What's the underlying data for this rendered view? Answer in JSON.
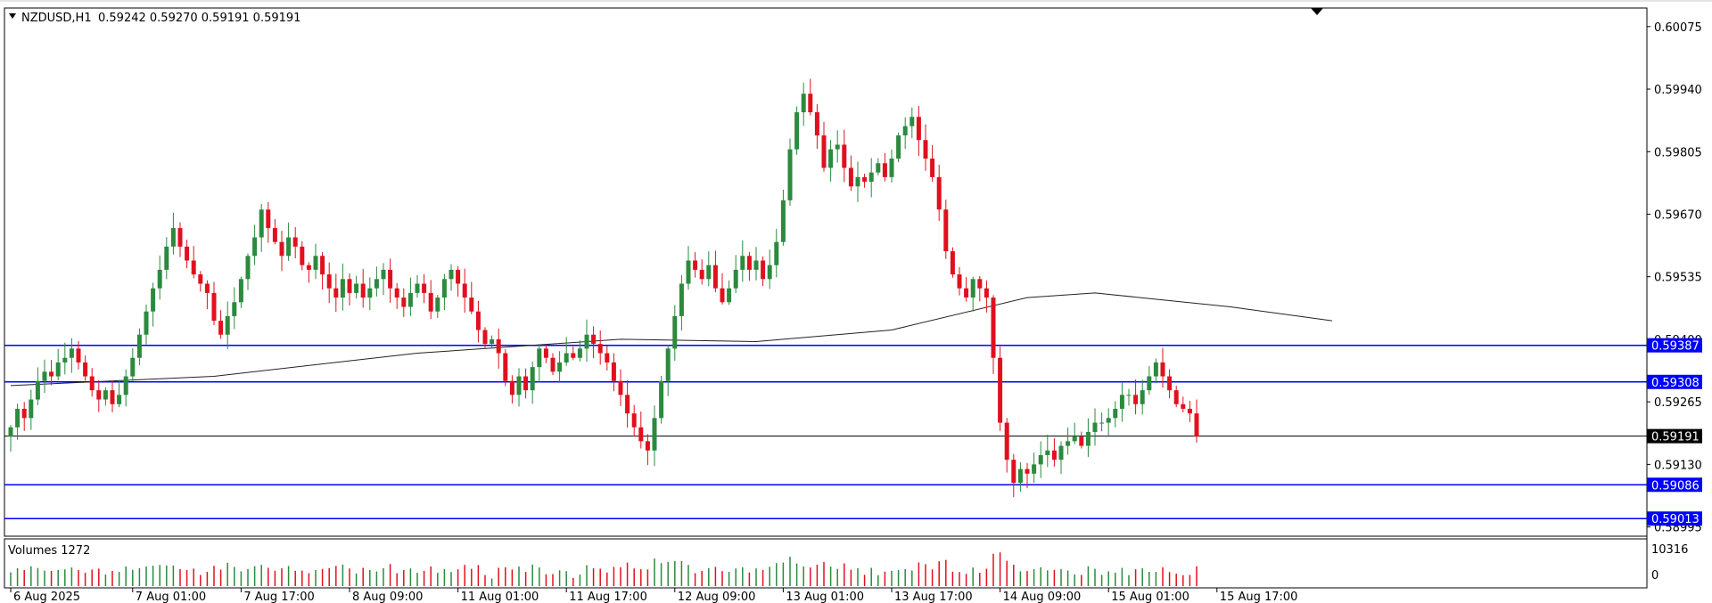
{
  "chart_data": {
    "type": "candlestick",
    "symbol_header": "NZDUSD,H1",
    "ohlc_header": "0.59242 0.59270 0.59191 0.59191",
    "y_range": [
      0.58975,
      0.60115
    ],
    "price_ticks": [
      "0.60075",
      "0.59940",
      "0.59805",
      "0.59670",
      "0.59535",
      "0.59400",
      "0.59265",
      "0.59130",
      "0.58995"
    ],
    "time_labels": [
      {
        "label": "6 Aug 2025",
        "bar": 0
      },
      {
        "label": "7 Aug 01:00",
        "bar": 18
      },
      {
        "label": "7 Aug 17:00",
        "bar": 34
      },
      {
        "label": "8 Aug 09:00",
        "bar": 50
      },
      {
        "label": "11 Aug 01:00",
        "bar": 66
      },
      {
        "label": "11 Aug 17:00",
        "bar": 82
      },
      {
        "label": "12 Aug 09:00",
        "bar": 98
      },
      {
        "label": "13 Aug 01:00",
        "bar": 114
      },
      {
        "label": "13 Aug 17:00",
        "bar": 130
      },
      {
        "label": "14 Aug 09:00",
        "bar": 146
      },
      {
        "label": "15 Aug 01:00",
        "bar": 162
      },
      {
        "label": "15 Aug 17:00",
        "bar": 178
      }
    ],
    "closes": [
      0.5921,
      0.5925,
      0.5923,
      0.5927,
      0.5931,
      0.5933,
      0.5932,
      0.5935,
      0.5936,
      0.5938,
      0.5935,
      0.5932,
      0.5929,
      0.5927,
      0.5929,
      0.5926,
      0.5928,
      0.5932,
      0.5936,
      0.5941,
      0.5946,
      0.5951,
      0.5955,
      0.596,
      0.5964,
      0.596,
      0.5957,
      0.5954,
      0.5952,
      0.595,
      0.5944,
      0.5941,
      0.5945,
      0.5948,
      0.5953,
      0.5958,
      0.5962,
      0.5968,
      0.5964,
      0.5961,
      0.5958,
      0.5962,
      0.596,
      0.5956,
      0.5955,
      0.5958,
      0.5954,
      0.5951,
      0.5949,
      0.5953,
      0.595,
      0.5952,
      0.5949,
      0.5951,
      0.5953,
      0.5955,
      0.5951,
      0.5949,
      0.5947,
      0.595,
      0.5952,
      0.595,
      0.5946,
      0.5949,
      0.5953,
      0.5955,
      0.5952,
      0.5949,
      0.5946,
      0.5942,
      0.5939,
      0.594,
      0.5937,
      0.5931,
      0.5928,
      0.5932,
      0.5929,
      0.5934,
      0.5938,
      0.5936,
      0.5933,
      0.5935,
      0.5937,
      0.5936,
      0.5938,
      0.5941,
      0.5939,
      0.5937,
      0.5935,
      0.5931,
      0.5928,
      0.5924,
      0.5921,
      0.5918,
      0.5916,
      0.5923,
      0.5931,
      0.5938,
      0.5945,
      0.5952,
      0.5957,
      0.5955,
      0.5953,
      0.5956,
      0.5951,
      0.5948,
      0.5951,
      0.5955,
      0.5958,
      0.5955,
      0.5957,
      0.5953,
      0.5956,
      0.5961,
      0.597,
      0.5981,
      0.5989,
      0.5993,
      0.5989,
      0.5984,
      0.5977,
      0.5981,
      0.5982,
      0.5977,
      0.5973,
      0.5975,
      0.5974,
      0.5976,
      0.5978,
      0.5975,
      0.5979,
      0.5984,
      0.5986,
      0.5988,
      0.5983,
      0.5979,
      0.5975,
      0.5968,
      0.5959,
      0.5954,
      0.5951,
      0.5949,
      0.5953,
      0.5951,
      0.5949,
      0.5936,
      0.5922,
      0.5914,
      0.5909,
      0.5912,
      0.5911,
      0.5913,
      0.5915,
      0.5916,
      0.5914,
      0.5917,
      0.5918,
      0.5919,
      0.5917,
      0.592,
      0.5922,
      0.5922,
      0.5923,
      0.5925,
      0.5928,
      0.5928,
      0.5926,
      0.5929,
      0.5932,
      0.5935,
      0.5932,
      0.5929,
      0.5926,
      0.5925,
      0.5924,
      0.5919
    ],
    "ma_points": [
      [
        0,
        0.593
      ],
      [
        30,
        0.5932
      ],
      [
        60,
        0.5937
      ],
      [
        90,
        0.594
      ],
      [
        110,
        0.59395
      ],
      [
        130,
        0.5942
      ],
      [
        150,
        0.5949
      ],
      [
        160,
        0.595
      ],
      [
        180,
        0.5947
      ],
      [
        195,
        0.5944
      ]
    ],
    "horizontal_lines": [
      {
        "price": 0.59387,
        "label": "0.59387",
        "color": "#0000ff"
      },
      {
        "price": 0.59308,
        "label": "0.59308",
        "color": "#0000ff"
      },
      {
        "price": 0.59086,
        "label": "0.59086",
        "color": "#0000ff"
      },
      {
        "price": 0.59013,
        "label": "0.59013",
        "color": "#0000ff"
      }
    ],
    "current_price": {
      "price": 0.59191,
      "label": "0.59191"
    },
    "volume": {
      "title": "Volumes 1272",
      "ticks": [
        "10316",
        "0"
      ],
      "max": 10316
    },
    "colors": {
      "bull": "#2b8a3e",
      "bear": "#e0101e",
      "ma": "#222222",
      "grid_frame": "#000000"
    }
  }
}
